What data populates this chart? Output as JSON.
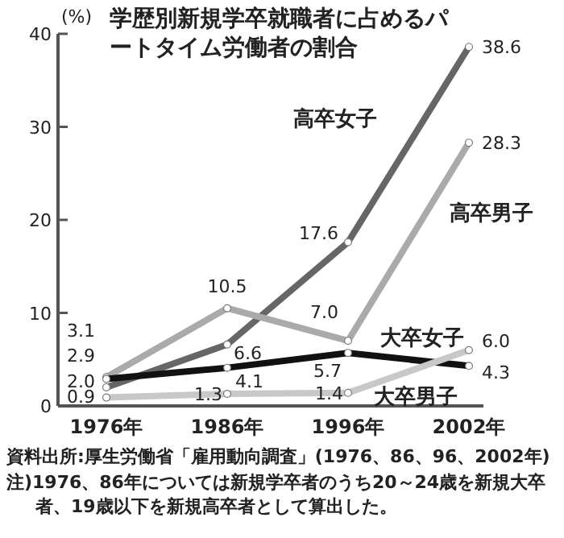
{
  "chart_data": {
    "type": "line",
    "title": "学歴別新規学卒就職者に占めるパートタイム労働者の割合",
    "ylabel": "(%)",
    "categories": [
      "1976年",
      "1986年",
      "1996年",
      "2002年"
    ],
    "series": [
      {
        "name": "高卒女子",
        "color": "#666666",
        "values": [
          2.0,
          6.6,
          17.6,
          38.6
        ],
        "value_labels": [
          "2.0",
          "6.6",
          "17.6",
          "38.6"
        ]
      },
      {
        "name": "高卒男子",
        "color": "#aaaaaa",
        "values": [
          3.1,
          10.5,
          7.0,
          28.3
        ],
        "value_labels": [
          "3.1",
          "10.5",
          "7.0",
          "28.3"
        ]
      },
      {
        "name": "大卒女子",
        "color": "#111111",
        "values": [
          2.9,
          4.1,
          5.7,
          4.3
        ],
        "value_labels": [
          "2.9",
          "4.1",
          "5.7",
          "4.3"
        ]
      },
      {
        "name": "大卒男子",
        "color": "#c8c8c8",
        "values": [
          0.9,
          1.3,
          1.4,
          6.0
        ],
        "value_labels": [
          "0.9",
          "1.3",
          "1.4",
          "6.0"
        ]
      }
    ],
    "ylim": [
      0,
      40
    ],
    "yticks": [
      0,
      10,
      20,
      30,
      40
    ],
    "marker": "circle",
    "grid": false,
    "annotations": [
      "資料出所:厚生労働省「雇用動向調査」(1976、86、96、2002年)",
      "注)1976、86年については新規学卒者のうち20～24歳を新規大卒者、19歳以下を新規高卒者として算出した。"
    ]
  }
}
